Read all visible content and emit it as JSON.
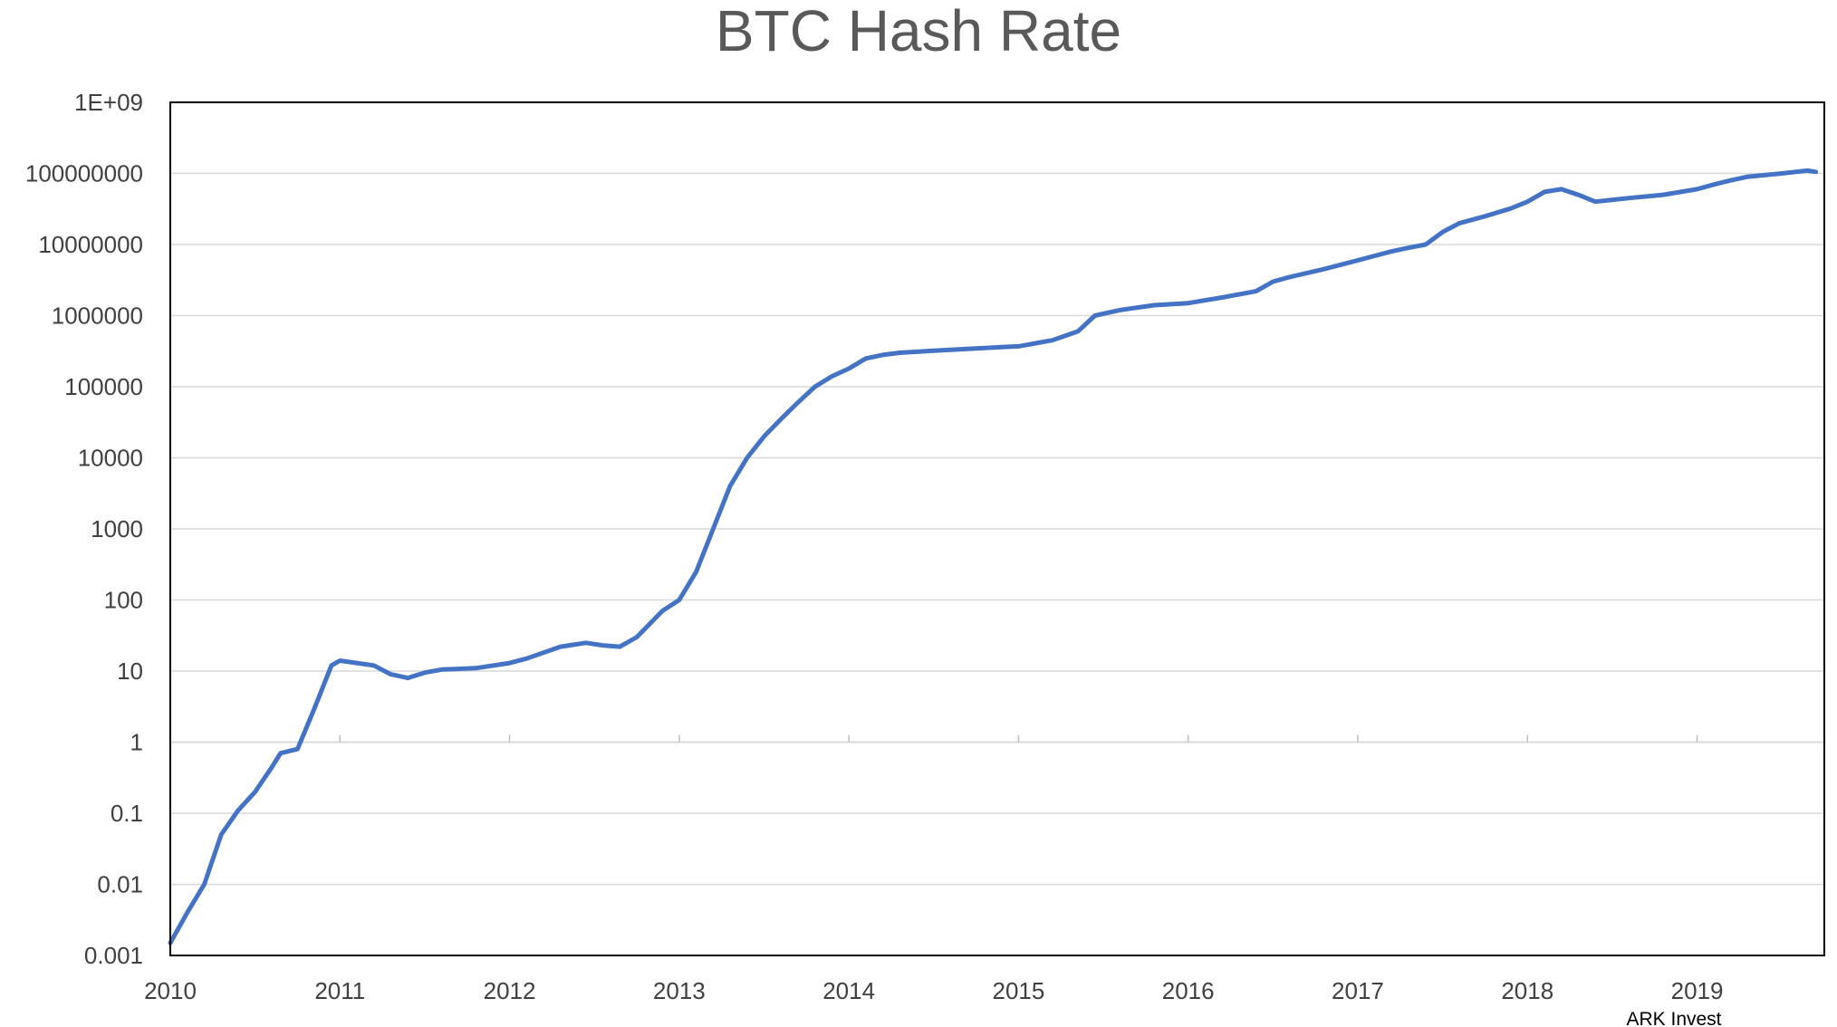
{
  "chart_data": {
    "type": "line",
    "title": "BTC Hash Rate",
    "source": "ARK Invest",
    "xlabel": "",
    "ylabel": "",
    "y_scale": "log",
    "ylim": [
      0.001,
      1000000000
    ],
    "xlim": [
      2010,
      2019.75
    ],
    "y_tick_labels": [
      "0.001",
      "0.01",
      "0.1",
      "1",
      "10",
      "100",
      "1000",
      "10000",
      "100000",
      "1000000",
      "10000000",
      "100000000",
      "1E+09"
    ],
    "y_tick_values": [
      0.001,
      0.01,
      0.1,
      1,
      10,
      100,
      1000,
      10000,
      100000,
      1000000,
      10000000,
      100000000,
      1000000000
    ],
    "x_tick_labels": [
      "2010",
      "2011",
      "2012",
      "2013",
      "2014",
      "2015",
      "2016",
      "2017",
      "2018",
      "2019"
    ],
    "x_tick_values": [
      2010,
      2011,
      2012,
      2013,
      2014,
      2015,
      2016,
      2017,
      2018,
      2019
    ],
    "grid": "horizontal",
    "legend": "none",
    "colors": {
      "line": "#4472C4",
      "grid": "#D9D9D9",
      "axis": "#000000",
      "text": "#404040",
      "title": "#595959"
    },
    "series": [
      {
        "x": [
          2010.0,
          2010.1,
          2010.2,
          2010.3,
          2010.4,
          2010.5,
          2010.6,
          2010.65,
          2010.75,
          2010.85,
          2010.95,
          2011.0,
          2011.1,
          2011.2,
          2011.3,
          2011.4,
          2011.5,
          2011.6,
          2011.8,
          2012.0,
          2012.1,
          2012.3,
          2012.45,
          2012.55,
          2012.65,
          2012.75,
          2012.9,
          2013.0,
          2013.1,
          2013.2,
          2013.3,
          2013.4,
          2013.5,
          2013.6,
          2013.7,
          2013.8,
          2013.9,
          2014.0,
          2014.1,
          2014.2,
          2014.3,
          2014.5,
          2014.7,
          2014.9,
          2015.0,
          2015.2,
          2015.35,
          2015.45,
          2015.6,
          2015.8,
          2016.0,
          2016.2,
          2016.4,
          2016.5,
          2016.6,
          2016.8,
          2017.0,
          2017.2,
          2017.3,
          2017.4,
          2017.5,
          2017.6,
          2017.75,
          2017.9,
          2018.0,
          2018.1,
          2018.2,
          2018.3,
          2018.4,
          2018.6,
          2018.8,
          2019.0,
          2019.1,
          2019.2,
          2019.3,
          2019.5,
          2019.65,
          2019.7
        ],
        "values": [
          0.0015,
          0.004,
          0.01,
          0.05,
          0.11,
          0.2,
          0.45,
          0.7,
          0.8,
          3.0,
          12.0,
          14.0,
          13.0,
          12.0,
          9.0,
          8.0,
          9.5,
          10.5,
          11.0,
          13.0,
          15.0,
          22.0,
          25.0,
          23.0,
          22.0,
          30.0,
          70.0,
          100.0,
          250.0,
          1000.0,
          4000.0,
          10000.0,
          20000.0,
          35000.0,
          60000.0,
          100000.0,
          140000.0,
          180000.0,
          250000.0,
          280000.0,
          300000.0,
          320000.0,
          340000.0,
          360000.0,
          370000.0,
          450000.0,
          600000.0,
          1000000.0,
          1200000.0,
          1400000.0,
          1500000.0,
          1800000.0,
          2200000.0,
          3000000.0,
          3500000.0,
          4500000.0,
          6000000.0,
          8000000.0,
          9000000.0,
          10000000.0,
          15000000.0,
          20000000.0,
          25000000.0,
          32000000.0,
          40000000.0,
          55000000.0,
          60000000.0,
          50000000.0,
          40000000.0,
          45000000.0,
          50000000.0,
          60000000.0,
          70000000.0,
          80000000.0,
          90000000.0,
          100000000.0,
          110000000.0,
          105000000.0
        ]
      }
    ]
  }
}
